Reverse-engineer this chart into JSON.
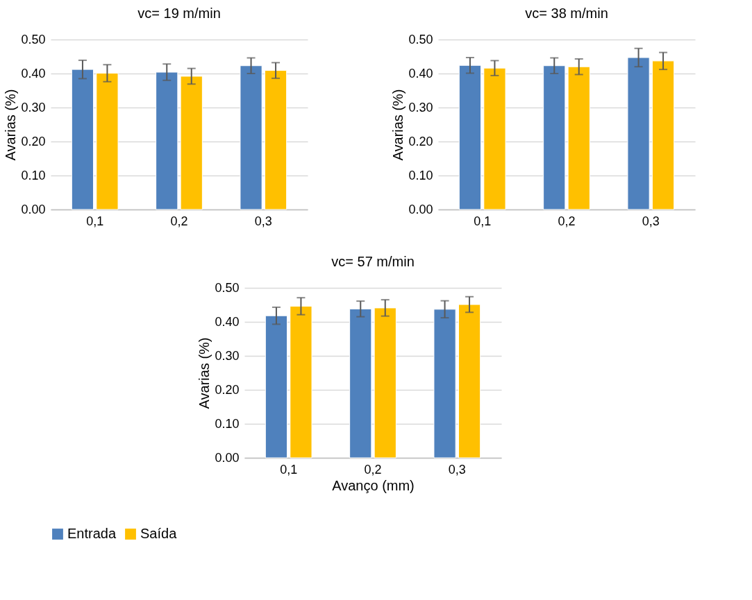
{
  "chart_data": [
    {
      "type": "bar",
      "title": "vc= 19 m/min",
      "ylabel": "Avarias (%)",
      "categories": [
        "0,1",
        "0,2",
        "0,3"
      ],
      "series": [
        {
          "name": "Entrada",
          "color": "#4f81bd",
          "values": [
            0.412,
            0.404,
            0.423
          ],
          "errors": [
            0.027,
            0.024,
            0.023
          ]
        },
        {
          "name": "Saída",
          "color": "#ffc000",
          "values": [
            0.401,
            0.392,
            0.409
          ],
          "errors": [
            0.025,
            0.023,
            0.023
          ]
        }
      ],
      "ylim": [
        0,
        0.5
      ],
      "yticks": [
        {
          "value": 0,
          "label": "0.00"
        },
        {
          "value": 0.1,
          "label": "0.10"
        },
        {
          "value": 0.2,
          "label": "0.20"
        },
        {
          "value": 0.3,
          "label": "0.30"
        },
        {
          "value": 0.4,
          "label": "0.40"
        },
        {
          "value": 0.5,
          "label": "0.50"
        }
      ],
      "grid": "y",
      "legend": "bottom"
    },
    {
      "type": "bar",
      "title": "vc= 38 m/min",
      "ylabel": "Avarias (%)",
      "categories": [
        "0,1",
        "0,2",
        "0,3"
      ],
      "series": [
        {
          "name": "Entrada",
          "color": "#4f81bd",
          "values": [
            0.424,
            0.423,
            0.447
          ],
          "errors": [
            0.023,
            0.023,
            0.027
          ]
        },
        {
          "name": "Saída",
          "color": "#ffc000",
          "values": [
            0.416,
            0.42,
            0.437
          ],
          "errors": [
            0.022,
            0.023,
            0.025
          ]
        }
      ],
      "ylim": [
        0,
        0.5
      ],
      "yticks": [
        {
          "value": 0,
          "label": "0.00"
        },
        {
          "value": 0.1,
          "label": "0.10"
        },
        {
          "value": 0.2,
          "label": "0.20"
        },
        {
          "value": 0.3,
          "label": "0.30"
        },
        {
          "value": 0.4,
          "label": "0.40"
        },
        {
          "value": 0.5,
          "label": "0.50"
        }
      ],
      "grid": "y"
    },
    {
      "type": "bar",
      "title": "vc= 57 m/min",
      "xlabel": "Avanço (mm)",
      "ylabel": "Avarias (%)",
      "categories": [
        "0,1",
        "0,2",
        "0,3"
      ],
      "series": [
        {
          "name": "Entrada",
          "color": "#4f81bd",
          "values": [
            0.418,
            0.438,
            0.437
          ],
          "errors": [
            0.025,
            0.023,
            0.025
          ]
        },
        {
          "name": "Saída",
          "color": "#ffc000",
          "values": [
            0.446,
            0.441,
            0.451
          ],
          "errors": [
            0.025,
            0.024,
            0.023
          ]
        }
      ],
      "ylim": [
        0,
        0.5
      ],
      "yticks": [
        {
          "value": 0,
          "label": "0.00"
        },
        {
          "value": 0.1,
          "label": "0.10"
        },
        {
          "value": 0.2,
          "label": "0.20"
        },
        {
          "value": 0.3,
          "label": "0.30"
        },
        {
          "value": 0.4,
          "label": "0.40"
        },
        {
          "value": 0.5,
          "label": "0.50"
        }
      ],
      "grid": "y"
    }
  ]
}
